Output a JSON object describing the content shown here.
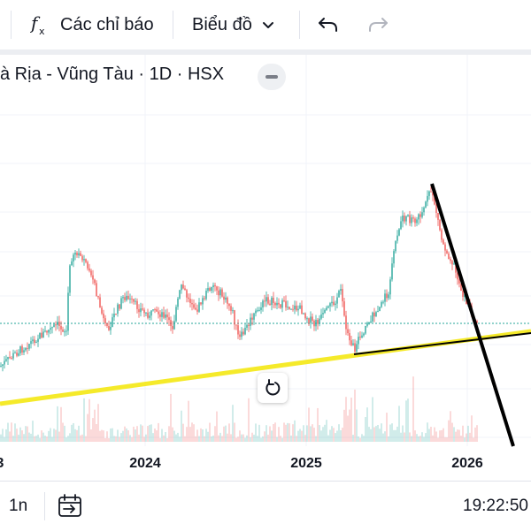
{
  "toolbar": {
    "indicators_label": "Các chỉ báo",
    "chart_type_label": "Biểu đồ",
    "indicators_icon": "function-fx-icon",
    "chevron_icon": "chevron-down-icon",
    "undo_icon": "undo-icon",
    "redo_icon": "redo-icon"
  },
  "legend": {
    "title": "à Rịa - Vũng Tàu · 1D · HSX"
  },
  "chart_data": {
    "type": "candlestick",
    "x_tick_labels": [
      "3",
      "2024",
      "2025",
      "2026"
    ],
    "annotations": [
      "yellow-trendline",
      "black-trendline-1",
      "black-trendline-2"
    ],
    "colors": {
      "up": "#26a69a",
      "down": "#ef5350",
      "yellow_line": "#f5ea2a",
      "black_line": "#000000"
    }
  },
  "bottom": {
    "interval_label": "1n",
    "time": "19:22:50",
    "goto_icon": "calendar-goto-icon"
  }
}
